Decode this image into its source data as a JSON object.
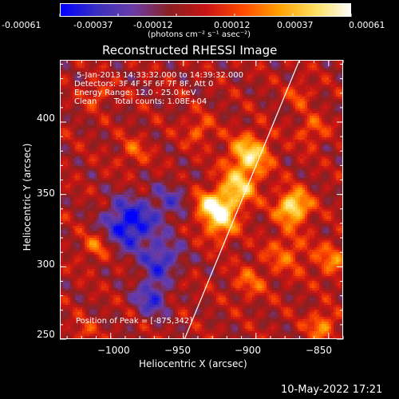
{
  "colorbar": {
    "tick_labels": [
      "-0.00061",
      "-0.00037",
      "-0.00012",
      "0.00012",
      "0.00037",
      "0.00061"
    ],
    "unit_label": "(photons cm⁻² s⁻¹ asec⁻²)"
  },
  "chart_data": {
    "type": "heatmap",
    "title": "Reconstructed RHESSI Image",
    "xlabel": "Heliocentric X (arcsec)",
    "ylabel": "Heliocentric Y (arcsec)",
    "xlim": [
      -1035,
      -840
    ],
    "ylim": [
      250,
      443
    ],
    "x_ticks": [
      -1000,
      -950,
      -900,
      -850
    ],
    "x_tick_labels": [
      "−1000",
      "−950",
      "−900",
      "−850"
    ],
    "y_ticks": [
      250,
      300,
      350,
      400
    ],
    "y_tick_labels": [
      "250",
      "300",
      "350",
      "400"
    ],
    "value_range": [
      -0.00061,
      0.00061
    ],
    "colormap": [
      "#0000ff",
      "#3a2fbf",
      "#6a3ca8",
      "#8b1f1f",
      "#c81414",
      "#ff4a00",
      "#ffa000",
      "#ffe060",
      "#ffffff"
    ],
    "peak_position": [
      -875,
      342
    ],
    "limb_line": [
      [
        -952,
        245
      ],
      [
        -870,
        445
      ]
    ],
    "annotations": {
      "time_range": "5-Jan-2013 14:33:32.000 to 14:39:32.000",
      "detectors": "Detectors: 3F 4F 5F 6F 7F 8F, Att 0",
      "energy_range": "Energy Range: 12.0 - 25.0 keV",
      "method": "Clean",
      "total_counts": "Total counts: 1.08E+04",
      "peak_text": "Position of Peak = [-875,342]"
    }
  },
  "footer": {
    "timestamp": "10-May-2022 17:21"
  }
}
